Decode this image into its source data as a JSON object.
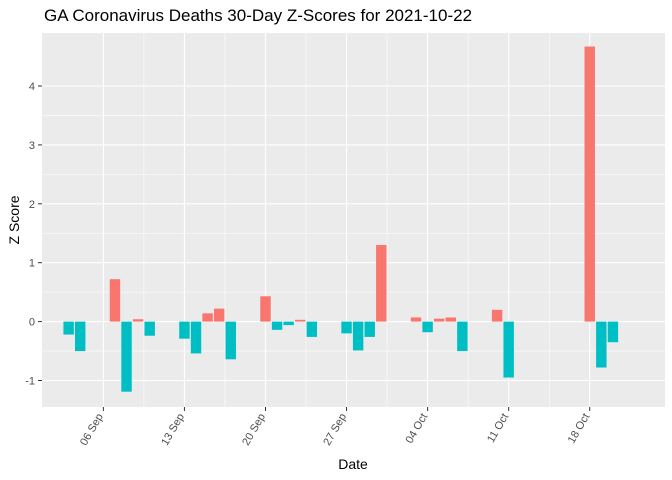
{
  "chart_data": {
    "type": "bar",
    "title": "GA Coronavirus Deaths 30-Day Z-Scores for 2021-10-22",
    "xlabel": "Date",
    "ylabel": "Z Score",
    "ylim": [
      -1.45,
      4.9
    ],
    "y_ticks": [
      -1,
      0,
      1,
      2,
      3,
      4
    ],
    "x_ticks": [
      "06 Sep",
      "13 Sep",
      "20 Sep",
      "27 Sep",
      "04 Oct",
      "11 Oct",
      "18 Oct"
    ],
    "x_tick_days": [
      6,
      13,
      20,
      27,
      34,
      41,
      48
    ],
    "x_range_days": [
      0.7,
      54.5
    ],
    "colors": {
      "positive": "#F8766D",
      "negative": "#00BFC4",
      "panel": "#EBEBEB",
      "grid": "#FFFFFF"
    },
    "bars": [
      {
        "date": "2021-09-03",
        "day": 3,
        "value": -0.22
      },
      {
        "date": "2021-09-04",
        "day": 4,
        "value": -0.5
      },
      {
        "date": "2021-09-07",
        "day": 7,
        "value": 0.72
      },
      {
        "date": "2021-09-08",
        "day": 8,
        "value": -1.19
      },
      {
        "date": "2021-09-09",
        "day": 9,
        "value": 0.04
      },
      {
        "date": "2021-09-10",
        "day": 10,
        "value": -0.24
      },
      {
        "date": "2021-09-13",
        "day": 13,
        "value": -0.29
      },
      {
        "date": "2021-09-14",
        "day": 14,
        "value": -0.54
      },
      {
        "date": "2021-09-15",
        "day": 15,
        "value": 0.14
      },
      {
        "date": "2021-09-16",
        "day": 16,
        "value": 0.22
      },
      {
        "date": "2021-09-17",
        "day": 17,
        "value": -0.64
      },
      {
        "date": "2021-09-20",
        "day": 20,
        "value": 0.43
      },
      {
        "date": "2021-09-21",
        "day": 21,
        "value": -0.14
      },
      {
        "date": "2021-09-22",
        "day": 22,
        "value": -0.06
      },
      {
        "date": "2021-09-23",
        "day": 23,
        "value": 0.03
      },
      {
        "date": "2021-09-24",
        "day": 24,
        "value": -0.26
      },
      {
        "date": "2021-09-27",
        "day": 27,
        "value": -0.2
      },
      {
        "date": "2021-09-28",
        "day": 28,
        "value": -0.49
      },
      {
        "date": "2021-09-29",
        "day": 29,
        "value": -0.26
      },
      {
        "date": "2021-09-30",
        "day": 30,
        "value": 1.3
      },
      {
        "date": "2021-10-03",
        "day": 33,
        "value": 0.07
      },
      {
        "date": "2021-10-04",
        "day": 34,
        "value": -0.18
      },
      {
        "date": "2021-10-05",
        "day": 35,
        "value": 0.05
      },
      {
        "date": "2021-10-06",
        "day": 36,
        "value": 0.07
      },
      {
        "date": "2021-10-07",
        "day": 37,
        "value": -0.5
      },
      {
        "date": "2021-10-10",
        "day": 40,
        "value": 0.2
      },
      {
        "date": "2021-10-11",
        "day": 41,
        "value": -0.95
      },
      {
        "date": "2021-10-18",
        "day": 48,
        "value": 4.67
      },
      {
        "date": "2021-10-19",
        "day": 49,
        "value": -0.78
      },
      {
        "date": "2021-10-20",
        "day": 50,
        "value": -0.35
      }
    ]
  }
}
